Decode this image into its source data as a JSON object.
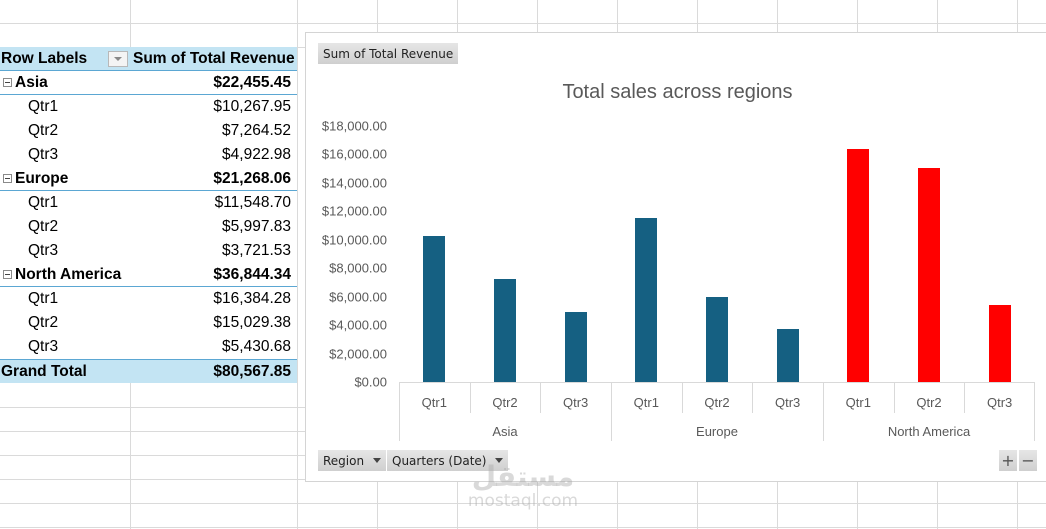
{
  "pivot_table": {
    "header": {
      "row_labels": "Row Labels",
      "value_field": "Sum of Total Revenue"
    },
    "groups": [
      {
        "label": "Asia",
        "total": "$22,455.45",
        "children": [
          {
            "label": "Qtr1",
            "value": "$10,267.95"
          },
          {
            "label": "Qtr2",
            "value": "$7,264.52"
          },
          {
            "label": "Qtr3",
            "value": "$4,922.98"
          }
        ]
      },
      {
        "label": "Europe",
        "total": "$21,268.06",
        "children": [
          {
            "label": "Qtr1",
            "value": "$11,548.70"
          },
          {
            "label": "Qtr2",
            "value": "$5,997.83"
          },
          {
            "label": "Qtr3",
            "value": "$3,721.53"
          }
        ]
      },
      {
        "label": "North America",
        "total": "$36,844.34",
        "children": [
          {
            "label": "Qtr1",
            "value": "$16,384.28"
          },
          {
            "label": "Qtr2",
            "value": "$15,029.38"
          },
          {
            "label": "Qtr3",
            "value": "$5,430.68"
          }
        ]
      }
    ],
    "grand_total": {
      "label": "Grand Total",
      "value": "$80,567.85"
    }
  },
  "pivot_chart": {
    "value_field_button": "Sum of Total Revenue",
    "axis_field_buttons": [
      "Region",
      "Quarters (Date)"
    ],
    "zoom_in": "+",
    "zoom_out": "−",
    "colors": {
      "default_bar": "#156082",
      "highlight_bar": "#ff0000"
    }
  },
  "chart_data": {
    "type": "bar",
    "title": "Total sales across regions",
    "xlabel": "",
    "ylabel": "",
    "ylim": [
      0,
      18000
    ],
    "y_ticks": [
      "$18,000.00",
      "$16,000.00",
      "$14,000.00",
      "$12,000.00",
      "$10,000.00",
      "$8,000.00",
      "$6,000.00",
      "$4,000.00",
      "$2,000.00",
      "$0.00"
    ],
    "grid": false,
    "legend": "none",
    "group_labels": [
      "Asia",
      "Europe",
      "North America"
    ],
    "categories": [
      "Qtr1",
      "Qtr2",
      "Qtr3",
      "Qtr1",
      "Qtr2",
      "Qtr3",
      "Qtr1",
      "Qtr2",
      "Qtr3"
    ],
    "series": [
      {
        "name": "Sum of Total Revenue",
        "values": [
          10267.95,
          7264.52,
          4922.98,
          11548.7,
          5997.83,
          3721.53,
          16384.28,
          15029.38,
          5430.68
        ],
        "colors": [
          "#156082",
          "#156082",
          "#156082",
          "#156082",
          "#156082",
          "#156082",
          "#ff0000",
          "#ff0000",
          "#ff0000"
        ]
      }
    ]
  },
  "watermark": {
    "arabic": "مستقل",
    "latin": "mostaql.com"
  }
}
